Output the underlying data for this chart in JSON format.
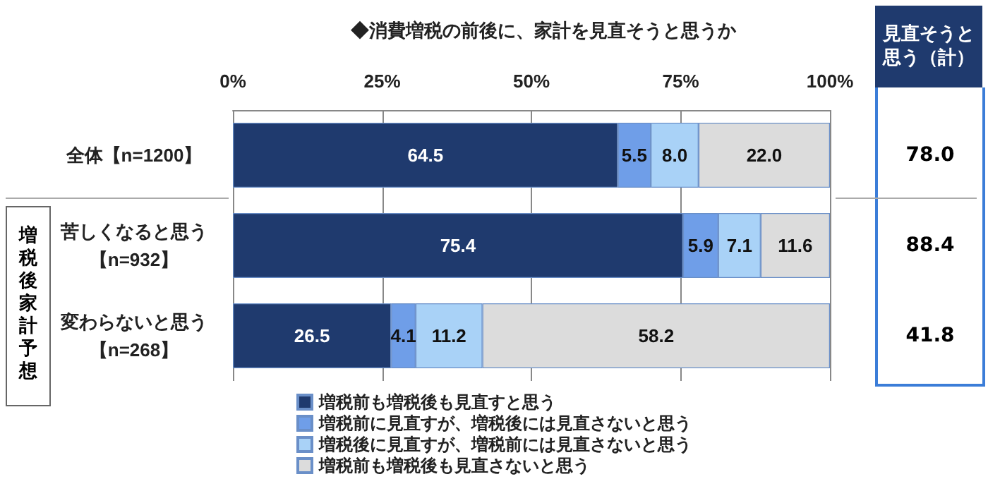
{
  "chart_data": {
    "type": "bar",
    "orientation": "horizontal",
    "stacked": true,
    "title": "◆消費増税の前後に、家計を見直そうと思うか",
    "categories": [
      "全体【n=1200】",
      "苦しくなると思う【n=932】",
      "変わらないと思う【n=268】"
    ],
    "series": [
      {
        "name": "増税前も増税後も見直すと思う",
        "color": "#1f3a6e",
        "values": [
          64.5,
          75.4,
          26.5
        ],
        "value_labels": [
          "64.5",
          "75.4",
          "26.5"
        ]
      },
      {
        "name": "増税前に見直すが、増税後には見直さないと思う",
        "color": "#6f9ee8",
        "values": [
          5.5,
          5.9,
          4.1
        ],
        "value_labels": [
          "5.5",
          "5.9",
          "4.1"
        ]
      },
      {
        "name": "増税後に見直すが、増税前には見直さないと思う",
        "color": "#a9d2f7",
        "values": [
          8.0,
          7.1,
          11.2
        ],
        "value_labels": [
          "8.0",
          "7.1",
          "11.2"
        ]
      },
      {
        "name": "増税前も増税後も見直さないと思う",
        "color": "#dcdcdc",
        "values": [
          22.0,
          11.6,
          58.2
        ],
        "value_labels": [
          "22.0",
          "11.6",
          "58.2"
        ]
      }
    ],
    "xlim": [
      0,
      100
    ],
    "xticks": [
      {
        "value": 0,
        "label": "0%"
      },
      {
        "value": 25,
        "label": "25%"
      },
      {
        "value": 50,
        "label": "50%"
      },
      {
        "value": 75,
        "label": "75%"
      },
      {
        "value": 100,
        "label": "100%"
      }
    ],
    "grid": "x",
    "legend": "bottom",
    "annotations": [
      "見直そうと思う（計）",
      "増税後家計予想",
      "78.0",
      "88.4",
      "41.8"
    ]
  }
}
